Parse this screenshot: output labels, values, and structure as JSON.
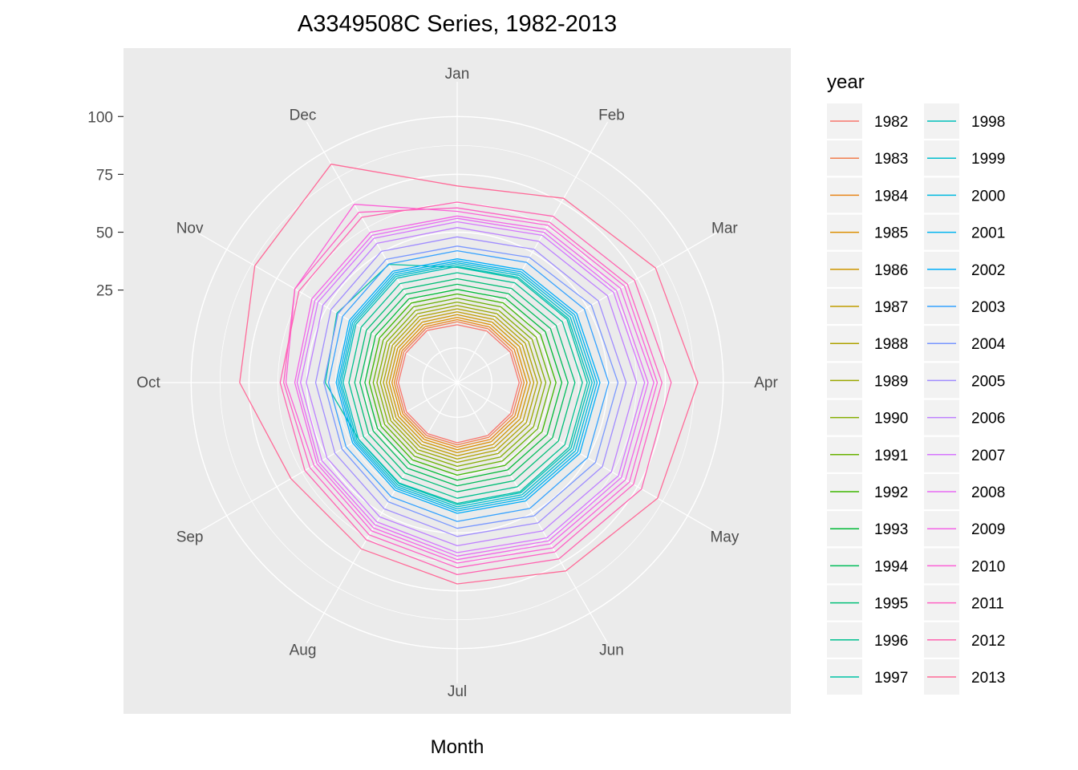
{
  "chart_data": {
    "type": "line",
    "coord": "polar",
    "title": "A3349508C Series, 1982-2013",
    "xlabel": "Month",
    "ylabel": "",
    "theta_categories": [
      "Jan",
      "Feb",
      "Mar",
      "Apr",
      "May",
      "Jun",
      "Jul",
      "Aug",
      "Sep",
      "Oct",
      "Nov",
      "Dec"
    ],
    "r_ticks": [
      25,
      50,
      75,
      100
    ],
    "rlim": [
      -15,
      115
    ],
    "grid": true,
    "legend": {
      "title": "year",
      "position": "right",
      "columns": 2
    },
    "palette": {
      "panel_bg": "#EBEBEB",
      "grid": "#FFFFFF",
      "key_bg": "#F2F2F2"
    },
    "series": [
      {
        "name": "1982",
        "color": "#F8766D",
        "values": [
          10.0,
          10.7,
          11.4,
          11.8,
          11.7,
          11.4,
          11.0,
          10.5,
          10.3,
          10.4,
          10.6,
          11.0
        ]
      },
      {
        "name": "1983",
        "color": "#F17E4F",
        "values": [
          11.3,
          11.8,
          12.4,
          12.8,
          12.7,
          12.3,
          11.9,
          11.4,
          11.2,
          11.3,
          11.6,
          12.0
        ]
      },
      {
        "name": "1984",
        "color": "#E7861B",
        "values": [
          12.2,
          12.8,
          13.5,
          13.9,
          13.8,
          13.4,
          12.9,
          12.4,
          12.1,
          12.2,
          12.5,
          12.9
        ]
      },
      {
        "name": "1985",
        "color": "#DB8E00",
        "values": [
          13.2,
          13.9,
          14.7,
          15.2,
          15.0,
          14.5,
          14.0,
          13.4,
          13.1,
          13.2,
          13.5,
          14.0
        ]
      },
      {
        "name": "1986",
        "color": "#CE9500",
        "values": [
          14.4,
          15.2,
          16.1,
          16.6,
          16.4,
          15.9,
          15.3,
          14.6,
          14.3,
          14.4,
          14.7,
          15.2
        ]
      },
      {
        "name": "1987",
        "color": "#BF9C00",
        "values": [
          15.6,
          16.5,
          17.5,
          18.1,
          17.9,
          17.3,
          16.6,
          15.9,
          15.5,
          15.6,
          16.0,
          16.6
        ]
      },
      {
        "name": "1988",
        "color": "#AEA200",
        "values": [
          16.9,
          17.9,
          19.0,
          19.7,
          19.5,
          18.8,
          18.0,
          17.2,
          16.8,
          16.9,
          17.3,
          17.9
        ]
      },
      {
        "name": "1989",
        "color": "#9BA700",
        "values": [
          18.3,
          19.4,
          20.6,
          21.4,
          21.2,
          20.4,
          19.5,
          18.6,
          18.1,
          18.2,
          18.7,
          19.4
        ]
      },
      {
        "name": "1990",
        "color": "#85AD00",
        "values": [
          19.8,
          21.0,
          22.4,
          23.3,
          23.1,
          22.2,
          21.2,
          20.1,
          19.6,
          19.7,
          20.2,
          21.0
        ]
      },
      {
        "name": "1991",
        "color": "#68B100",
        "values": [
          21.5,
          22.8,
          24.4,
          25.4,
          25.1,
          24.1,
          23.0,
          21.8,
          21.2,
          21.3,
          21.9,
          22.8
        ]
      },
      {
        "name": "1992",
        "color": "#3DB600",
        "values": [
          23.3,
          24.8,
          26.6,
          27.7,
          27.4,
          26.3,
          25.0,
          23.6,
          22.9,
          23.0,
          23.7,
          24.7
        ]
      },
      {
        "name": "1993",
        "color": "#00B937",
        "values": [
          25.3,
          27.0,
          29.0,
          30.2,
          29.9,
          28.6,
          27.2,
          25.6,
          24.8,
          24.9,
          25.7,
          26.8
        ]
      },
      {
        "name": "1994",
        "color": "#00BC5A",
        "values": [
          27.5,
          29.4,
          31.6,
          32.9,
          32.6,
          31.2,
          29.6,
          27.8,
          26.9,
          27.0,
          27.9,
          29.1
        ]
      },
      {
        "name": "1995",
        "color": "#00BE76",
        "values": [
          29.9,
          32.0,
          34.4,
          35.9,
          35.5,
          34.0,
          32.2,
          30.2,
          29.2,
          29.3,
          30.3,
          31.6
        ]
      },
      {
        "name": "1996",
        "color": "#00C08E",
        "values": [
          32.5,
          34.8,
          37.5,
          39.1,
          38.7,
          37.0,
          35.0,
          32.8,
          31.7,
          31.8,
          32.9,
          34.4
        ]
      },
      {
        "name": "1997",
        "color": "#00C1A5",
        "values": [
          34.8,
          37.0,
          39.8,
          41.2,
          40.9,
          39.4,
          37.2,
          35.1,
          34.1,
          42.0,
          45.0,
          44.0
        ]
      },
      {
        "name": "1998",
        "color": "#00C0BA",
        "values": [
          35.2,
          37.6,
          40.5,
          42.2,
          41.8,
          40.0,
          37.8,
          35.4,
          34.2,
          34.3,
          35.5,
          37.1
        ]
      },
      {
        "name": "1999",
        "color": "#00BECE",
        "values": [
          36.0,
          38.5,
          41.5,
          43.3,
          42.9,
          41.0,
          38.7,
          36.2,
          35.0,
          35.1,
          36.3,
          38.0
        ]
      },
      {
        "name": "2000",
        "color": "#00BADF",
        "values": [
          36.8,
          39.4,
          42.6,
          44.4,
          44.0,
          42.0,
          39.6,
          37.0,
          35.7,
          35.8,
          37.1,
          38.8
        ]
      },
      {
        "name": "2001",
        "color": "#00B4EF",
        "values": [
          37.6,
          40.3,
          43.6,
          45.5,
          45.1,
          43.0,
          40.5,
          37.8,
          36.4,
          36.5,
          37.9,
          39.7
        ]
      },
      {
        "name": "2002",
        "color": "#00ADFA",
        "values": [
          38.5,
          41.3,
          44.7,
          46.7,
          46.2,
          44.1,
          41.5,
          38.7,
          37.2,
          37.3,
          38.8,
          40.6
        ]
      },
      {
        "name": "2003",
        "color": "#35A2FF",
        "values": [
          42.0,
          45.0,
          48.5,
          50.5,
          50.0,
          47.8,
          45.0,
          42.0,
          40.5,
          40.6,
          42.2,
          44.2
        ]
      },
      {
        "name": "2004",
        "color": "#7997FF",
        "values": [
          44.0,
          47.5,
          52.0,
          54.5,
          54.0,
          51.5,
          48.0,
          44.5,
          42.5,
          42.6,
          44.5,
          46.5
        ]
      },
      {
        "name": "2005",
        "color": "#A08CFF",
        "values": [
          48.0,
          51.5,
          55.5,
          58.0,
          57.5,
          55.0,
          51.5,
          48.0,
          46.0,
          46.2,
          48.0,
          50.5
        ]
      },
      {
        "name": "2006",
        "color": "#BE80FF",
        "values": [
          52.0,
          55.5,
          60.0,
          62.5,
          62.0,
          59.0,
          55.5,
          52.0,
          50.0,
          50.2,
          52.0,
          54.5
        ]
      },
      {
        "name": "2007",
        "color": "#D575FE",
        "values": [
          54.5,
          58.5,
          63.0,
          66.0,
          65.5,
          62.5,
          58.5,
          54.5,
          52.5,
          52.7,
          54.5,
          57.0
        ]
      },
      {
        "name": "2008",
        "color": "#E76BF3",
        "values": [
          56.0,
          60.0,
          64.5,
          67.5,
          67.0,
          64.0,
          60.0,
          56.0,
          54.0,
          54.2,
          56.0,
          58.5
        ]
      },
      {
        "name": "2009",
        "color": "#F464E7",
        "values": [
          57.0,
          61.5,
          66.5,
          70.0,
          69.0,
          65.5,
          61.5,
          57.5,
          55.0,
          55.2,
          57.5,
          60.0
        ]
      },
      {
        "name": "2010",
        "color": "#FC61D7",
        "values": [
          59.0,
          63.5,
          68.5,
          71.5,
          71.0,
          67.5,
          63.0,
          59.0,
          56.5,
          59.0,
          66.0,
          74.0
        ]
      },
      {
        "name": "2011",
        "color": "#FF61C4",
        "values": [
          60.5,
          65.0,
          70.0,
          73.5,
          73.0,
          69.5,
          65.0,
          61.0,
          58.5,
          60.0,
          66.0,
          70.0
        ]
      },
      {
        "name": "2012",
        "color": "#FF64B0",
        "values": [
          63.0,
          68.0,
          73.5,
          77.5,
          77.0,
          73.0,
          68.0,
          63.5,
          61.0,
          61.5,
          64.0,
          67.5
        ]
      },
      {
        "name": "2013",
        "color": "#FF6A98",
        "values": [
          70.0,
          77.0,
          84.0,
          89.0,
          85.0,
          79.0,
          72.0,
          68.0,
          68.0,
          79.0,
          86.0,
          94.0
        ]
      }
    ]
  }
}
